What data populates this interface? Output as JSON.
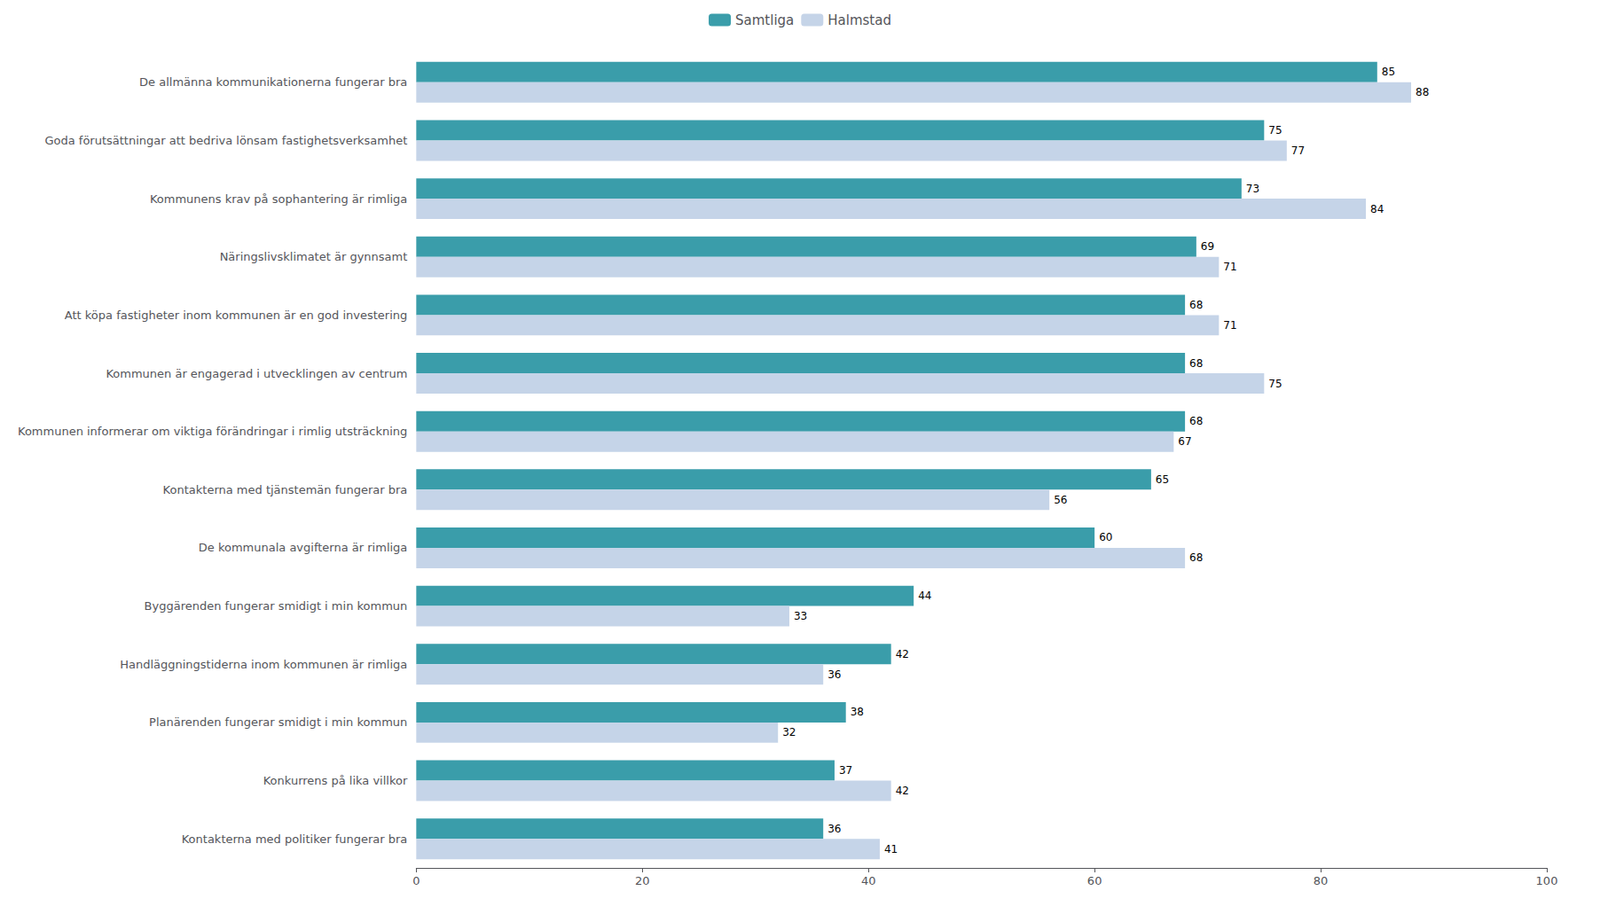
{
  "chart_data": {
    "type": "bar",
    "orientation": "horizontal",
    "categories": [
      "De allmänna kommunikationerna fungerar bra",
      "Goda förutsättningar att bedriva lönsam fastighetsverksamhet",
      "Kommunens krav på sophantering är rimliga",
      "Näringslivsklimatet är gynnsamt",
      "Att köpa fastigheter inom kommunen är en god investering",
      "Kommunen är engagerad i utvecklingen av centrum",
      "Kommunen informerar om viktiga förändringar i rimlig utsträckning",
      "Kontakterna med tjänstemän fungerar bra",
      "De kommunala avgifterna är rimliga",
      "Byggärenden fungerar smidigt i min kommun",
      "Handläggningstiderna inom kommunen är rimliga",
      "Planärenden fungerar smidigt i min kommun",
      "Konkurrens på lika villkor",
      "Kontakterna med politiker fungerar bra"
    ],
    "series": [
      {
        "name": "Samtliga",
        "color": "#3a9daa",
        "values": [
          85,
          75,
          73,
          69,
          68,
          68,
          68,
          65,
          60,
          44,
          42,
          38,
          37,
          36
        ]
      },
      {
        "name": "Halmstad",
        "color": "#c5d4e8",
        "values": [
          88,
          77,
          84,
          71,
          71,
          75,
          67,
          56,
          68,
          33,
          36,
          32,
          42,
          41
        ]
      }
    ],
    "xlim": [
      0,
      100
    ],
    "xticks": [
      0,
      20,
      40,
      60,
      80,
      100
    ],
    "grid": false,
    "data_labels": true,
    "legend": "top"
  }
}
